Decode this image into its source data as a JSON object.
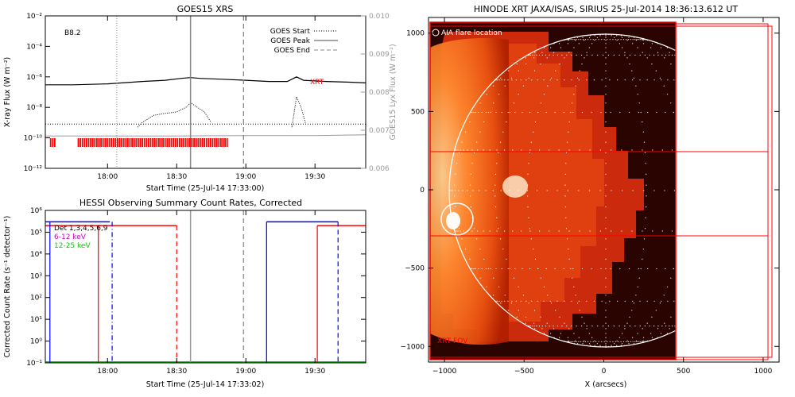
{
  "colors": {
    "xrt_red": "#ff0000",
    "hessi_blue": "#0000ff",
    "hessi_green": "#00cc00",
    "hessi_magenta": "#cc00cc",
    "goes_gray": "#999999",
    "sun_dark": "#2a0400"
  },
  "chart_data": [
    {
      "id": "goes",
      "type": "line",
      "title": "GOES15 XRS",
      "xlabel": "Start Time (25-Jul-14 17:33:00)",
      "ylabel": "X-ray Flux (W m⁻²)",
      "ylabel_right": "GOES15 Lyx Flux (W m⁻²)",
      "xlim": [
        "17:33",
        "19:52"
      ],
      "xlim_minutes": [
        0,
        139
      ],
      "ylim": [
        1e-12,
        0.01
      ],
      "yscale": "log",
      "ylim_right": [
        0.006,
        0.01
      ],
      "x_ticks": [
        "18:00",
        "18:30",
        "19:00",
        "19:30"
      ],
      "y_ticks": [
        "10⁻¹²",
        "10⁻¹⁰",
        "10⁻⁸",
        "10⁻⁶",
        "10⁻⁴",
        "10⁻²"
      ],
      "y_ticks_right": [
        "0.006",
        "0.007",
        "0.008",
        "0.009",
        "0.010"
      ],
      "class_label": "B8.2",
      "legend": [
        "GOES Start",
        "GOES Peak",
        "GOES End"
      ],
      "marker_label": "XRT",
      "events": {
        "goes_start": "18:04",
        "goes_peak": "18:36",
        "goes_end": "18:59"
      },
      "series": [
        {
          "style": "solid-black",
          "t": [
            "17:33",
            "17:45",
            "18:00",
            "18:15",
            "18:25",
            "18:32",
            "18:36",
            "18:40",
            "18:50",
            "19:00",
            "19:10",
            "19:18",
            "19:22",
            "19:25",
            "19:35",
            "19:45",
            "19:52"
          ],
          "y": [
            3e-07,
            3e-07,
            3.5e-07,
            5e-07,
            6e-07,
            8e-07,
            9e-07,
            8e-07,
            7e-07,
            6e-07,
            5e-07,
            5e-07,
            1e-06,
            6e-07,
            5e-07,
            4.5e-07,
            4e-07
          ]
        },
        {
          "style": "dotted-black",
          "t": [
            "18:13",
            "18:15",
            "18:20",
            "18:25",
            "18:30",
            "18:34",
            "18:36",
            "18:39",
            "18:42",
            "18:45",
            "19:20",
            "19:22",
            "19:24",
            "19:26"
          ],
          "y": [
            5e-10,
            1e-09,
            3e-09,
            4e-09,
            5e-09,
            1e-08,
            2e-08,
            1e-08,
            5e-09,
            1e-09,
            5e-10,
            5e-08,
            1e-08,
            8e-10
          ]
        },
        {
          "style": "dotted-black-flat",
          "t": [
            "17:33",
            "19:52"
          ],
          "y": [
            8e-10,
            8e-10
          ]
        },
        {
          "style": "gray-lyx",
          "t": [
            "17:33",
            "18:30",
            "19:00",
            "19:30",
            "19:52"
          ],
          "y": [
            0.00685,
            0.00685,
            0.00686,
            0.00686,
            0.00688
          ]
        }
      ],
      "xrt_observing_intervals": [
        [
          "17:35",
          "17:37"
        ],
        [
          "17:47",
          "18:52"
        ]
      ]
    },
    {
      "id": "hessi",
      "type": "line",
      "title": "HESSI Observing Summary Count Rates, Corrected",
      "xlabel": "Start Time (25-Jul-14 17:33:02)",
      "ylabel": "Corrected Count Rate (s⁻¹ detector⁻¹)",
      "xlim": [
        "17:33",
        "19:52"
      ],
      "xlim_minutes": [
        0,
        139
      ],
      "ylim": [
        0.1,
        1000000.0
      ],
      "yscale": "log",
      "x_ticks": [
        "18:00",
        "18:30",
        "19:00",
        "19:30"
      ],
      "y_ticks": [
        "10⁻¹",
        "10⁰",
        "10¹",
        "10²",
        "10³",
        "10⁴",
        "10⁵",
        "10⁶"
      ],
      "legend": [
        {
          "label": "Det 1,3,4,5,6,9",
          "color": "#000000"
        },
        {
          "label": "6-12 keV",
          "color": "#cc00cc"
        },
        {
          "label": "12-25 keV",
          "color": "#00cc00"
        }
      ],
      "series": [
        {
          "name": "6-12 keV",
          "note": "printed in legend only"
        }
      ],
      "blue_segments": [
        [
          "17:33",
          "18:01"
        ],
        [
          "19:09",
          "19:40"
        ]
      ],
      "blue_level": 300000,
      "red_segments": [
        [
          "17:33",
          "18:30"
        ],
        [
          "19:31",
          "19:52"
        ]
      ],
      "red_level": 200000,
      "vertical_lines": [
        {
          "t": "17:35",
          "color": "blue",
          "style": "solid"
        },
        {
          "t": "18:02",
          "color": "blue",
          "style": "dashdot"
        },
        {
          "t": "17:56",
          "color": "red",
          "style": "solid"
        },
        {
          "t": "18:30",
          "color": "red",
          "style": "dashed"
        },
        {
          "t": "18:36",
          "color": "gray",
          "style": "solid"
        },
        {
          "t": "18:59",
          "color": "gray",
          "style": "dashed"
        },
        {
          "t": "19:09",
          "color": "blue",
          "style": "solid"
        },
        {
          "t": "19:31",
          "color": "red",
          "style": "solid"
        },
        {
          "t": "19:40",
          "color": "blue",
          "style": "dashed"
        }
      ],
      "green_level": 0.1
    },
    {
      "id": "xrt",
      "type": "image",
      "title": "HINODE XRT JAXA/ISAS, SIRIUS 25-Jul-2014 18:36:13.612 UT",
      "xlabel": "X (arcsecs)",
      "xlim": [
        -1100,
        1100
      ],
      "ylim": [
        -1100,
        1100
      ],
      "x_ticks": [
        "−1000",
        "−500",
        "0",
        "500",
        "1000"
      ],
      "y_ticks": [
        "−1000",
        "−500",
        "0",
        "500",
        "1000"
      ],
      "aia_label": "AIA flare location",
      "fov_label": "XRT FOV",
      "flare_location": {
        "x": -960,
        "y": -190
      }
    }
  ]
}
